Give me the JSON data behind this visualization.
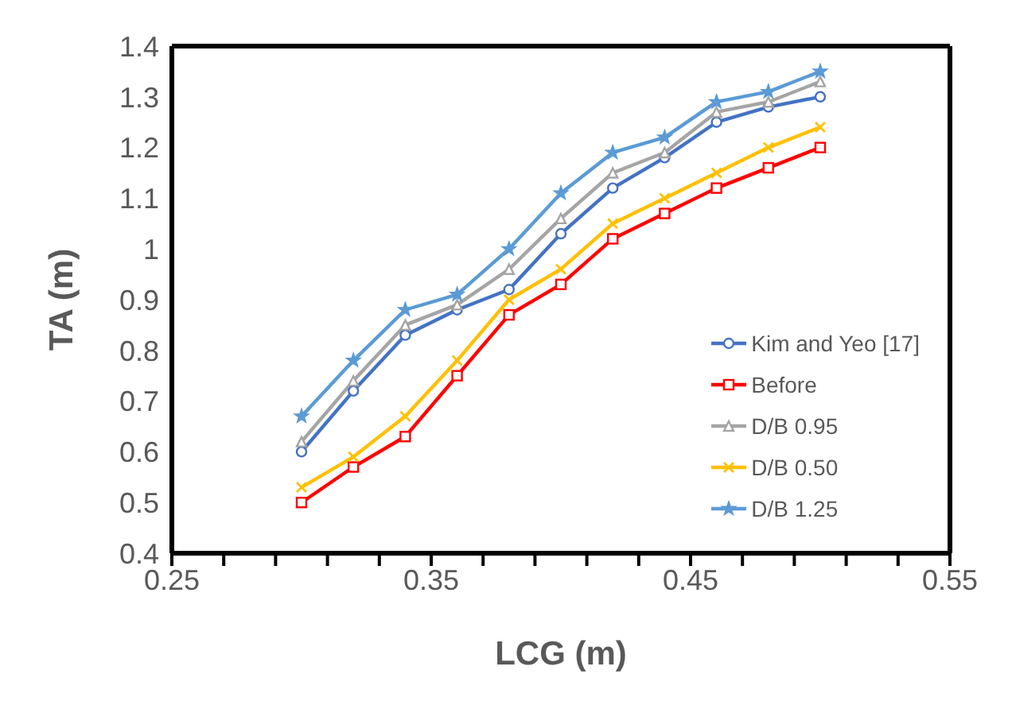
{
  "chart_data": {
    "type": "line",
    "xlabel": "LCG (m)",
    "ylabel": "TA (m)",
    "x": [
      0.3,
      0.32,
      0.34,
      0.36,
      0.38,
      0.4,
      0.42,
      0.44,
      0.46,
      0.48,
      0.5
    ],
    "xlim": [
      0.25,
      0.55
    ],
    "xticks": [
      0.25,
      {
        "value": 0.27,
        "label": null
      },
      {
        "value": 0.29,
        "label": null
      },
      {
        "value": 0.31,
        "label": null
      },
      {
        "value": 0.33,
        "label": null
      },
      0.35,
      {
        "value": 0.37,
        "label": null
      },
      {
        "value": 0.39,
        "label": null
      },
      {
        "value": 0.41,
        "label": null
      },
      {
        "value": 0.43,
        "label": null
      },
      0.45,
      {
        "value": 0.47,
        "label": null
      },
      {
        "value": 0.49,
        "label": null
      },
      {
        "value": 0.51,
        "label": null
      },
      {
        "value": 0.53,
        "label": null
      },
      0.55
    ],
    "ylim": [
      0.4,
      1.4
    ],
    "yticks": [
      0.4,
      0.5,
      0.6,
      0.7,
      0.8,
      0.9,
      1,
      1.1,
      1.2,
      1.3,
      1.4
    ],
    "grid": false,
    "legend": "right",
    "series": [
      {
        "name": "Kim and Yeo [17]",
        "color": "#4472c4",
        "marker": "circle",
        "values": [
          0.6,
          0.72,
          0.83,
          0.88,
          0.92,
          1.03,
          1.12,
          1.18,
          1.25,
          1.28,
          1.3
        ]
      },
      {
        "name": "Before",
        "color": "#ff0000",
        "marker": "square",
        "values": [
          0.5,
          0.57,
          0.63,
          0.75,
          0.87,
          0.93,
          1.02,
          1.07,
          1.12,
          1.16,
          1.2
        ]
      },
      {
        "name": "D/B 0.95",
        "color": "#a5a5a5",
        "marker": "triangle",
        "values": [
          0.62,
          0.74,
          0.85,
          0.89,
          0.96,
          1.06,
          1.15,
          1.19,
          1.27,
          1.29,
          1.33
        ]
      },
      {
        "name": "D/B 0.50",
        "color": "#ffc000",
        "marker": "cross",
        "values": [
          0.53,
          0.59,
          0.67,
          0.78,
          0.9,
          0.96,
          1.05,
          1.1,
          1.15,
          1.2,
          1.24
        ]
      },
      {
        "name": "D/B 1.25",
        "color": "#5b9bd5",
        "marker": "star",
        "values": [
          0.67,
          0.78,
          0.88,
          0.91,
          1.0,
          1.11,
          1.19,
          1.22,
          1.29,
          1.31,
          1.35
        ]
      }
    ]
  }
}
